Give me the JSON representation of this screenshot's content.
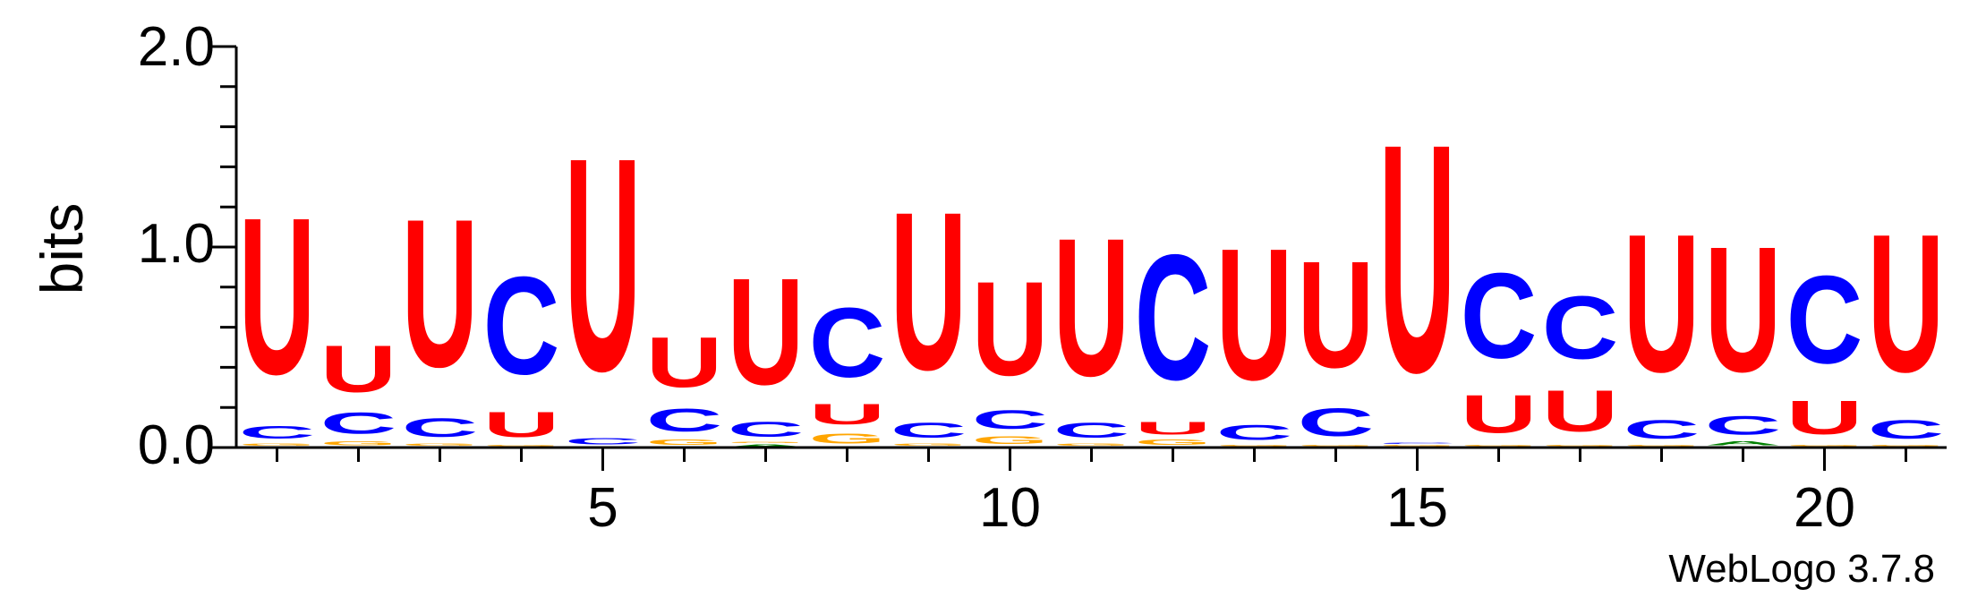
{
  "chart_data": {
    "type": "sequence-logo",
    "ylabel": "bits",
    "ylim": [
      0,
      2
    ],
    "y_ticks": [
      "0.0",
      "1.0",
      "2.0"
    ],
    "x_ticks": [
      5,
      10,
      15,
      20
    ],
    "credit": "WebLogo 3.7.8",
    "colors": {
      "U": "#ff0000",
      "C": "#0000ff",
      "G": "#ffa500",
      "A": "#008000"
    },
    "positions": [
      {
        "pos": 1,
        "letters": [
          [
            "A",
            0.005
          ],
          [
            "G",
            0.02
          ],
          [
            "C",
            0.1
          ],
          [
            "U",
            1.25
          ]
        ]
      },
      {
        "pos": 2,
        "letters": [
          [
            "A",
            0.005
          ],
          [
            "G",
            0.03
          ],
          [
            "C",
            0.17
          ],
          [
            "U",
            0.37
          ]
        ]
      },
      {
        "pos": 3,
        "letters": [
          [
            "A",
            0.005
          ],
          [
            "G",
            0.02
          ],
          [
            "C",
            0.15
          ],
          [
            "U",
            1.18
          ]
        ]
      },
      {
        "pos": 4,
        "letters": [
          [
            "A",
            0.005
          ],
          [
            "G",
            0.01
          ],
          [
            "U",
            0.2
          ],
          [
            "C",
            0.78
          ]
        ]
      },
      {
        "pos": 5,
        "letters": [
          [
            "A",
            0.005
          ],
          [
            "C",
            0.05
          ],
          [
            "U",
            1.7
          ]
        ]
      },
      {
        "pos": 6,
        "letters": [
          [
            "A",
            0.005
          ],
          [
            "G",
            0.04
          ],
          [
            "C",
            0.18
          ],
          [
            "U",
            0.4
          ]
        ]
      },
      {
        "pos": 7,
        "letters": [
          [
            "A",
            0.02
          ],
          [
            "G",
            0.01
          ],
          [
            "C",
            0.12
          ],
          [
            "U",
            0.85
          ]
        ]
      },
      {
        "pos": 8,
        "letters": [
          [
            "A",
            0.005
          ],
          [
            "G",
            0.08
          ],
          [
            "U",
            0.16
          ],
          [
            "C",
            0.55
          ]
        ]
      },
      {
        "pos": 9,
        "letters": [
          [
            "A",
            0.005
          ],
          [
            "G",
            0.02
          ],
          [
            "C",
            0.12
          ],
          [
            "U",
            1.26
          ]
        ]
      },
      {
        "pos": 10,
        "letters": [
          [
            "A",
            0.005
          ],
          [
            "G",
            0.06
          ],
          [
            "C",
            0.15
          ],
          [
            "U",
            0.75
          ]
        ]
      },
      {
        "pos": 11,
        "letters": [
          [
            "A",
            0.005
          ],
          [
            "G",
            0.02
          ],
          [
            "C",
            0.12
          ],
          [
            "U",
            1.1
          ]
        ]
      },
      {
        "pos": 12,
        "letters": [
          [
            "A",
            0.005
          ],
          [
            "G",
            0.04
          ],
          [
            "U",
            0.1
          ],
          [
            "C",
            1.0
          ]
        ]
      },
      {
        "pos": 13,
        "letters": [
          [
            "A",
            0.005
          ],
          [
            "G",
            0.01
          ],
          [
            "C",
            0.12
          ],
          [
            "U",
            1.05
          ]
        ]
      },
      {
        "pos": 14,
        "letters": [
          [
            "A",
            0.005
          ],
          [
            "G",
            0.01
          ],
          [
            "C",
            0.22
          ],
          [
            "U",
            0.85
          ]
        ]
      },
      {
        "pos": 15,
        "letters": [
          [
            "A",
            0.005
          ],
          [
            "G",
            0.01
          ],
          [
            "C",
            0.01
          ],
          [
            "U",
            1.82
          ]
        ]
      },
      {
        "pos": 16,
        "letters": [
          [
            "A",
            0.005
          ],
          [
            "G",
            0.01
          ],
          [
            "U",
            0.3
          ],
          [
            "C",
            0.68
          ]
        ]
      },
      {
        "pos": 17,
        "letters": [
          [
            "A",
            0.005
          ],
          [
            "G",
            0.01
          ],
          [
            "U",
            0.33
          ],
          [
            "C",
            0.5
          ]
        ]
      },
      {
        "pos": 18,
        "letters": [
          [
            "A",
            0.005
          ],
          [
            "G",
            0.01
          ],
          [
            "C",
            0.15
          ],
          [
            "U",
            1.1
          ]
        ]
      },
      {
        "pos": 19,
        "letters": [
          [
            "G",
            0.005
          ],
          [
            "A",
            0.03
          ],
          [
            "C",
            0.15
          ],
          [
            "U",
            1.0
          ]
        ]
      },
      {
        "pos": 20,
        "letters": [
          [
            "A",
            0.005
          ],
          [
            "G",
            0.01
          ],
          [
            "U",
            0.27
          ],
          [
            "C",
            0.7
          ]
        ]
      },
      {
        "pos": 21,
        "letters": [
          [
            "A",
            0.005
          ],
          [
            "G",
            0.01
          ],
          [
            "C",
            0.15
          ],
          [
            "U",
            1.1
          ]
        ]
      }
    ]
  }
}
